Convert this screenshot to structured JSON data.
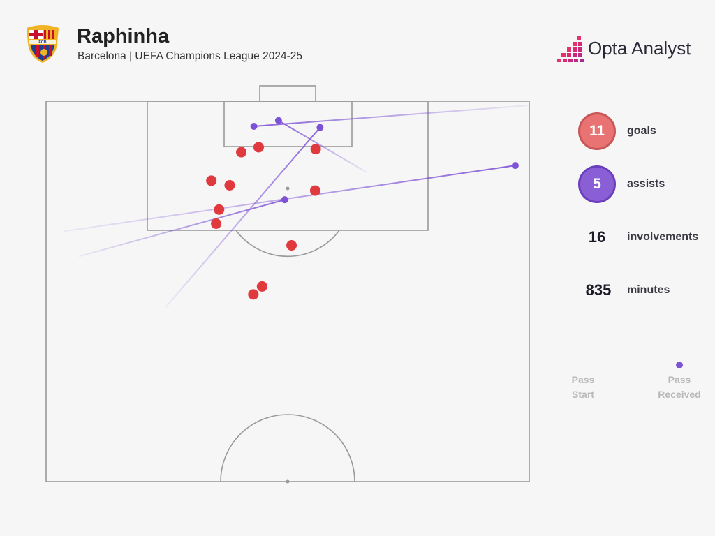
{
  "header": {
    "title": "Raphinha",
    "subtitle": "Barcelona | UEFA Champions League 2024-25",
    "crest_text": "FCB",
    "brand": "Opta Analyst"
  },
  "stats": {
    "goals": {
      "value": "11",
      "label": "goals",
      "color": "#e97272"
    },
    "assists": {
      "value": "5",
      "label": "assists",
      "color": "#8a5fd6"
    },
    "involvements": {
      "value": "16",
      "label": "involvements"
    },
    "minutes": {
      "value": "835",
      "label": "minutes"
    }
  },
  "legend": {
    "start_line1": "Pass",
    "start_line2": "Start",
    "end_line1": "Pass",
    "end_line2": "Received"
  },
  "colors": {
    "background": "#f6f6f6",
    "pitch_lines": "#9a9a9a",
    "shot": "#e0393e",
    "pass": "#7e52d6",
    "crest_red": "#c8102e",
    "crest_blue": "#1f3f8f",
    "crest_gold": "#f0b323"
  },
  "chart_data": {
    "type": "scatter",
    "title": "Raphinha",
    "subtitle": "Barcelona | UEFA Champions League 2024-25",
    "pitch": "half-pitch, attacking goal at top",
    "x_units": "width fraction (0 = left touchline, 1 = right touchline)",
    "y_units": "distance from goal line as fraction of half-pitch length",
    "goals": [
      {
        "x": 0.404,
        "y": 0.134
      },
      {
        "x": 0.44,
        "y": 0.121
      },
      {
        "x": 0.558,
        "y": 0.126
      },
      {
        "x": 0.342,
        "y": 0.209
      },
      {
        "x": 0.38,
        "y": 0.221
      },
      {
        "x": 0.557,
        "y": 0.235
      },
      {
        "x": 0.358,
        "y": 0.285
      },
      {
        "x": 0.352,
        "y": 0.322
      },
      {
        "x": 0.508,
        "y": 0.379
      },
      {
        "x": 0.447,
        "y": 0.487
      },
      {
        "x": 0.429,
        "y": 0.508
      }
    ],
    "assists": [
      {
        "start": {
          "x": 1.0,
          "y": 0.011
        },
        "end": {
          "x": 0.43,
          "y": 0.066
        }
      },
      {
        "start": {
          "x": 0.665,
          "y": 0.188
        },
        "end": {
          "x": 0.481,
          "y": 0.051
        }
      },
      {
        "start": {
          "x": 0.248,
          "y": 0.541
        },
        "end": {
          "x": 0.567,
          "y": 0.069
        }
      },
      {
        "start": {
          "x": 0.068,
          "y": 0.408
        },
        "end": {
          "x": 0.494,
          "y": 0.259
        }
      },
      {
        "start": {
          "x": 0.037,
          "y": 0.342
        },
        "end": {
          "x": 0.971,
          "y": 0.169
        }
      }
    ]
  }
}
